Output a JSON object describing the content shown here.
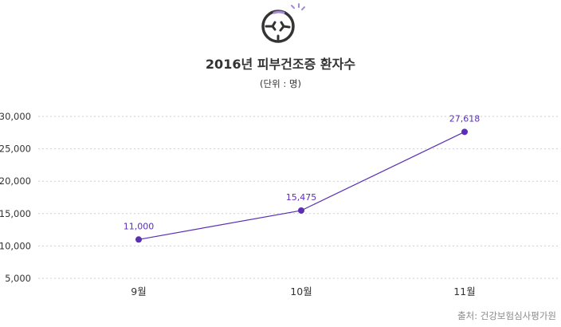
{
  "chart_data": {
    "type": "line",
    "title": "2016년 피부건조증 환자수",
    "subtitle": "(단위 : 명)",
    "categories": [
      "9월",
      "10월",
      "11월"
    ],
    "series": [
      {
        "values": [
          11000,
          15475,
          27618
        ],
        "labels": [
          "11,000",
          "15,475",
          "27,618"
        ]
      }
    ],
    "ylim": [
      5000,
      30000
    ],
    "yticks": [
      "5,000",
      "10,000",
      "15,000",
      "20,000",
      "25,000",
      "30,000"
    ],
    "ytick_values": [
      5000,
      10000,
      15000,
      20000,
      25000,
      30000
    ],
    "grid": true,
    "source": "출처: 건강보험심사평가원",
    "colors": {
      "line": "#5b2fb5",
      "icon": "#333333",
      "icon_accent": "#a58bd6"
    },
    "icon": "skin-dry-icon"
  }
}
